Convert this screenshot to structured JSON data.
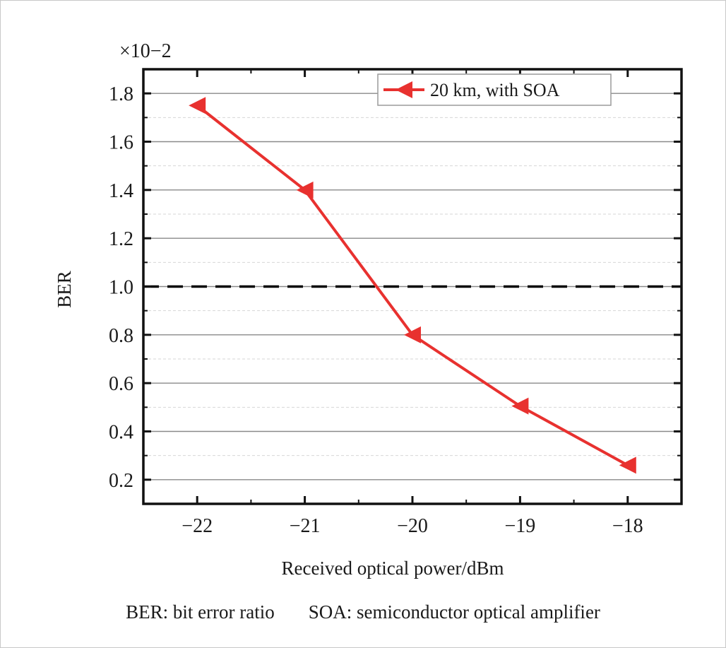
{
  "chart_data": {
    "type": "line",
    "title": "",
    "xlabel": "Received optical power/dBm",
    "ylabel": "BER",
    "y_multiplier": "×10−2",
    "xlim": [
      -22.5,
      -17.5
    ],
    "ylim": [
      0.1,
      1.9
    ],
    "x_ticks": [
      -22,
      -21,
      -20,
      -19,
      -18
    ],
    "x_tick_labels": [
      "−22",
      "−21",
      "−20",
      "−19",
      "−18"
    ],
    "y_ticks": [
      0.2,
      0.4,
      0.6,
      0.8,
      1.0,
      1.2,
      1.4,
      1.6,
      1.8
    ],
    "y_tick_labels": [
      "0.2",
      "0.4",
      "0.6",
      "0.8",
      "1.0",
      "1.2",
      "1.4",
      "1.6",
      "1.8"
    ],
    "grid": true,
    "legend_position": "top-right",
    "series": [
      {
        "name": "20 km, with SOA",
        "color": "#e8312f",
        "marker": "left-triangle",
        "x": [
          -22,
          -21,
          -20,
          -19,
          -18
        ],
        "y": [
          1.75,
          1.4,
          0.8,
          0.505,
          0.26
        ]
      }
    ],
    "reference_lines": [
      {
        "y": 1.0,
        "style": "dashed",
        "color": "#000000"
      }
    ]
  },
  "footnote": {
    "left": "BER: bit error ratio",
    "right": "SOA: semiconductor optical amplifier"
  }
}
